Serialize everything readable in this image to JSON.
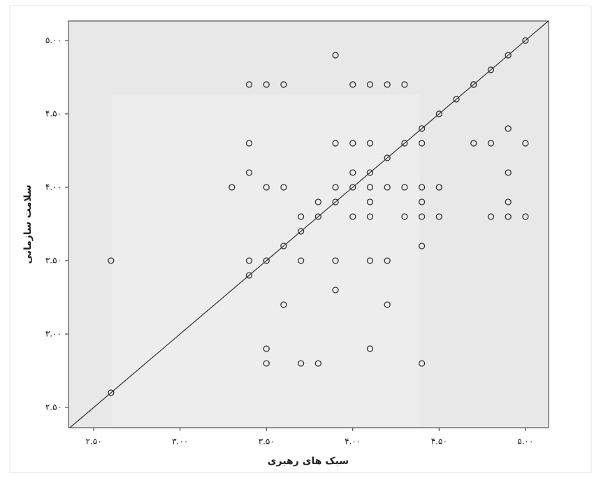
{
  "chart_data": {
    "type": "scatter",
    "x_label": "سبک های رهبری",
    "y_label": "سلامت سازمانی",
    "xlim": [
      2.354,
      5.134
    ],
    "ylim": [
      2.362,
      5.133
    ],
    "xticks": [
      {
        "value": 2.5,
        "label": "۲.۵۰"
      },
      {
        "value": 3.0,
        "label": "۳.۰۰"
      },
      {
        "value": 3.5,
        "label": "۳.۵۰"
      },
      {
        "value": 4.0,
        "label": "۴.۰۰"
      },
      {
        "value": 4.5,
        "label": "۴.۵۰"
      },
      {
        "value": 5.0,
        "label": "۵.۰۰"
      }
    ],
    "yticks": [
      {
        "value": 2.5,
        "label": "۲.۵۰"
      },
      {
        "value": 3.0,
        "label": "۳.۰۰"
      },
      {
        "value": 3.5,
        "label": "۳.۵۰"
      },
      {
        "value": 4.0,
        "label": "۴.۰۰"
      },
      {
        "value": 4.5,
        "label": "۴.۵۰"
      },
      {
        "value": 5.0,
        "label": "۵.۰۰"
      }
    ],
    "diagonal": true,
    "color": "#333333",
    "series": [
      {
        "name": null,
        "color": "#333333",
        "x": [
          5.0,
          4.9,
          4.8,
          4.7,
          4.6,
          4.5,
          4.4,
          4.3,
          4.2,
          4.1,
          4.0,
          3.9,
          3.8,
          3.7,
          3.6,
          3.5,
          3.4,
          2.6,
          3.9,
          3.4,
          3.5,
          3.6,
          4.0,
          4.1,
          4.2,
          4.3,
          4.7,
          4.9,
          3.4,
          3.9,
          4.0,
          4.1,
          4.4,
          4.7,
          4.8,
          5.0,
          3.4,
          4.0,
          4.9,
          3.3,
          3.5,
          3.6,
          3.9,
          4.1,
          4.2,
          4.3,
          4.4,
          4.5,
          3.8,
          4.1,
          4.4,
          4.9,
          3.7,
          4.0,
          4.1,
          4.3,
          4.4,
          4.5,
          4.8,
          4.9,
          5.0,
          4.4,
          2.6,
          3.4,
          3.7,
          3.9,
          4.1,
          4.2,
          3.9,
          3.6,
          4.2,
          3.5,
          4.1,
          3.5,
          3.7,
          3.8,
          4.4
        ],
        "y": [
          5.0,
          4.9,
          4.8,
          4.7,
          4.6,
          4.5,
          4.4,
          4.3,
          4.2,
          4.1,
          4.0,
          3.9,
          3.8,
          3.7,
          3.6,
          3.5,
          3.4,
          2.6,
          4.9,
          4.7,
          4.7,
          4.7,
          4.7,
          4.7,
          4.7,
          4.7,
          4.7,
          4.4,
          4.3,
          4.3,
          4.3,
          4.3,
          4.3,
          4.3,
          4.3,
          4.3,
          4.1,
          4.1,
          4.1,
          4.0,
          4.0,
          4.0,
          4.0,
          4.0,
          4.0,
          4.0,
          4.0,
          4.0,
          3.9,
          3.9,
          3.9,
          3.9,
          3.8,
          3.8,
          3.8,
          3.8,
          3.8,
          3.8,
          3.8,
          3.8,
          3.8,
          3.6,
          3.5,
          3.5,
          3.5,
          3.5,
          3.5,
          3.5,
          3.3,
          3.2,
          3.2,
          2.9,
          2.9,
          2.8,
          2.8,
          2.8,
          2.8
        ]
      }
    ]
  }
}
